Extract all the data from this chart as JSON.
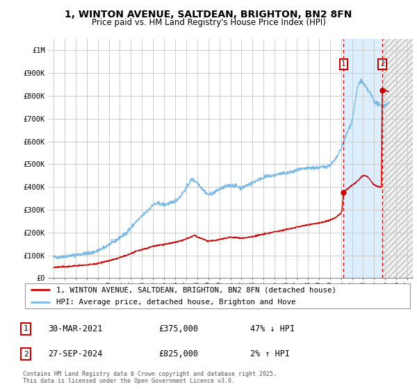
{
  "title": "1, WINTON AVENUE, SALTDEAN, BRIGHTON, BN2 8FN",
  "subtitle": "Price paid vs. HM Land Registry's House Price Index (HPI)",
  "ylim": [
    0,
    1050000
  ],
  "xlim_start": 1994.5,
  "xlim_end": 2027.5,
  "yticks": [
    0,
    100000,
    200000,
    300000,
    400000,
    500000,
    600000,
    700000,
    800000,
    900000,
    1000000
  ],
  "ytick_labels": [
    "£0",
    "£100K",
    "£200K",
    "£300K",
    "£400K",
    "£500K",
    "£600K",
    "£700K",
    "£800K",
    "£900K",
    "£1M"
  ],
  "xticks": [
    1995,
    1996,
    1997,
    1998,
    1999,
    2000,
    2001,
    2002,
    2003,
    2004,
    2005,
    2006,
    2007,
    2008,
    2009,
    2010,
    2011,
    2012,
    2013,
    2014,
    2015,
    2016,
    2017,
    2018,
    2019,
    2020,
    2021,
    2022,
    2023,
    2024,
    2025,
    2026,
    2027
  ],
  "hpi_color": "#7ab8e8",
  "price_color": "#cc0000",
  "vline1_x": 2021.23,
  "vline2_x": 2024.73,
  "marker1_x": 2021.23,
  "marker1_y": 375000,
  "marker2_x": 2024.73,
  "marker2_y": 825000,
  "label1_num": "1",
  "label2_num": "2",
  "shade_color": "#ddeeff",
  "hatch_color": "#cccccc",
  "annotation1_date": "30-MAR-2021",
  "annotation1_price": "£375,000",
  "annotation1_hpi": "47% ↓ HPI",
  "annotation2_date": "27-SEP-2024",
  "annotation2_price": "£825,000",
  "annotation2_hpi": "2% ↑ HPI",
  "legend_label1": "1, WINTON AVENUE, SALTDEAN, BRIGHTON, BN2 8FN (detached house)",
  "legend_label2": "HPI: Average price, detached house, Brighton and Hove",
  "footer": "Contains HM Land Registry data © Crown copyright and database right 2025.\nThis data is licensed under the Open Government Licence v3.0."
}
